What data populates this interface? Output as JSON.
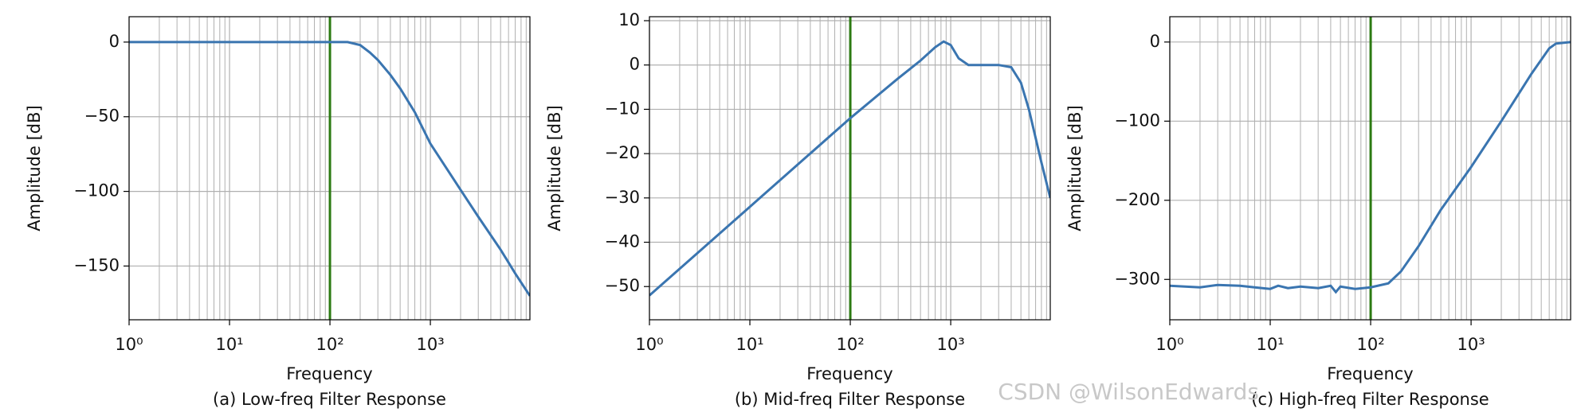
{
  "chart_data": [
    {
      "type": "line",
      "caption": "(a) Low-freq Filter Response",
      "xlabel": "Frequency",
      "ylabel": "Amplitude [dB]",
      "xscale": "log",
      "grid": true,
      "color": "#3a75b0",
      "vline": 100,
      "vline_color": "#2c7a12",
      "x": [
        1,
        10,
        100,
        150,
        200,
        250,
        300,
        400,
        500,
        700,
        1000,
        2000,
        3000,
        5000,
        7000,
        9800
      ],
      "values": [
        0,
        0,
        0,
        0,
        -2,
        -7,
        -12,
        -22,
        -31,
        -47,
        -68,
        -99,
        -117,
        -139,
        -155,
        -170
      ],
      "xlim": [
        1,
        9800
      ],
      "ylim": [
        -186,
        17
      ],
      "xticks": [
        {
          "value": 1,
          "label": "10⁰"
        },
        {
          "value": 10,
          "label": "10¹"
        },
        {
          "value": 100,
          "label": "10²"
        },
        {
          "value": 1000,
          "label": "10³"
        }
      ],
      "yticks": [
        0,
        {
          "value": -50,
          "label": "−50"
        },
        {
          "value": -100,
          "label": "−100"
        },
        {
          "value": -150,
          "label": "−150"
        }
      ]
    },
    {
      "type": "line",
      "caption": "(b) Mid-freq Filter Response",
      "xlabel": "Frequency",
      "ylabel": "Amplitude [dB]",
      "xscale": "log",
      "grid": true,
      "color": "#3a75b0",
      "vline": 100,
      "vline_color": "#2c7a12",
      "x": [
        1,
        10,
        100,
        300,
        500,
        700,
        850,
        1000,
        1200,
        1500,
        2000,
        3000,
        4000,
        5000,
        6000,
        8000,
        9800
      ],
      "values": [
        -52,
        -32,
        -12,
        -3,
        1,
        4,
        5.3,
        4.5,
        1.5,
        0,
        0,
        0,
        -0.5,
        -4,
        -10,
        -22,
        -30
      ],
      "xlim": [
        1,
        9800
      ],
      "ylim": [
        -57.5,
        10.9
      ],
      "xticks": [
        {
          "value": 1,
          "label": "10⁰"
        },
        {
          "value": 10,
          "label": "10¹"
        },
        {
          "value": 100,
          "label": "10²"
        },
        {
          "value": 1000,
          "label": "10³"
        }
      ],
      "yticks": [
        10,
        0,
        {
          "value": -10,
          "label": "−10"
        },
        {
          "value": -20,
          "label": "−20"
        },
        {
          "value": -30,
          "label": "−30"
        },
        {
          "value": -40,
          "label": "−40"
        },
        {
          "value": -50,
          "label": "−50"
        }
      ]
    },
    {
      "type": "line",
      "caption": "(c) High-freq Filter Response",
      "xlabel": "Frequency",
      "ylabel": "Amplitude [dB]",
      "xscale": "log",
      "grid": true,
      "color": "#3a75b0",
      "vline": 100,
      "vline_color": "#2c7a12",
      "x": [
        1,
        2,
        3,
        5,
        7,
        10,
        12,
        15,
        20,
        30,
        40,
        45,
        50,
        70,
        100,
        150,
        200,
        300,
        500,
        1000,
        2000,
        4000,
        6000,
        7000,
        9800
      ],
      "values": [
        -308,
        -310,
        -307,
        -308,
        -310,
        -312,
        -308,
        -311,
        -309,
        -311,
        -308,
        -316,
        -309,
        -312,
        -310,
        -305,
        -290,
        -258,
        -212,
        -158,
        -100,
        -40,
        -8,
        -2,
        0
      ],
      "xlim": [
        1,
        9800
      ],
      "ylim": [
        -351,
        32
      ],
      "xticks": [
        {
          "value": 1,
          "label": "10⁰"
        },
        {
          "value": 10,
          "label": "10¹"
        },
        {
          "value": 100,
          "label": "10²"
        },
        {
          "value": 1000,
          "label": "10³"
        }
      ],
      "yticks": [
        0,
        {
          "value": -100,
          "label": "−100"
        },
        {
          "value": -200,
          "label": "−200"
        },
        {
          "value": -300,
          "label": "−300"
        }
      ]
    }
  ],
  "watermark": "CSDN @WilsonEdwards"
}
